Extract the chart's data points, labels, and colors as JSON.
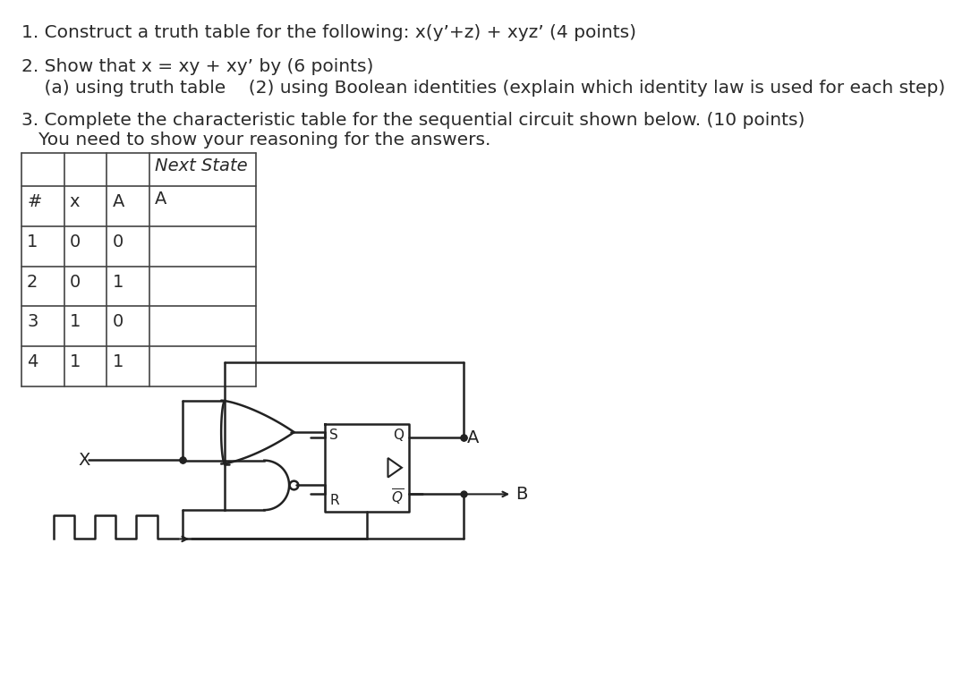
{
  "bg_color": "#ffffff",
  "text_color": "#2a2a2a",
  "line1": "1. Construct a truth table for the following: x(y’+z) + xyz’ (4 points)",
  "line2": "2. Show that x = xy + xy’ by (6 points)",
  "line3": "    (a) using truth table    (2) using Boolean identities (explain which identity law is used for each step)",
  "line4": "3. Complete the characteristic table for the sequential circuit shown below. (10 points)",
  "line5": "   You need to show your reasoning for the answers.",
  "font_size_text": 14.5,
  "font_size_table": 14,
  "lc": "#444444",
  "cc": "#222222"
}
